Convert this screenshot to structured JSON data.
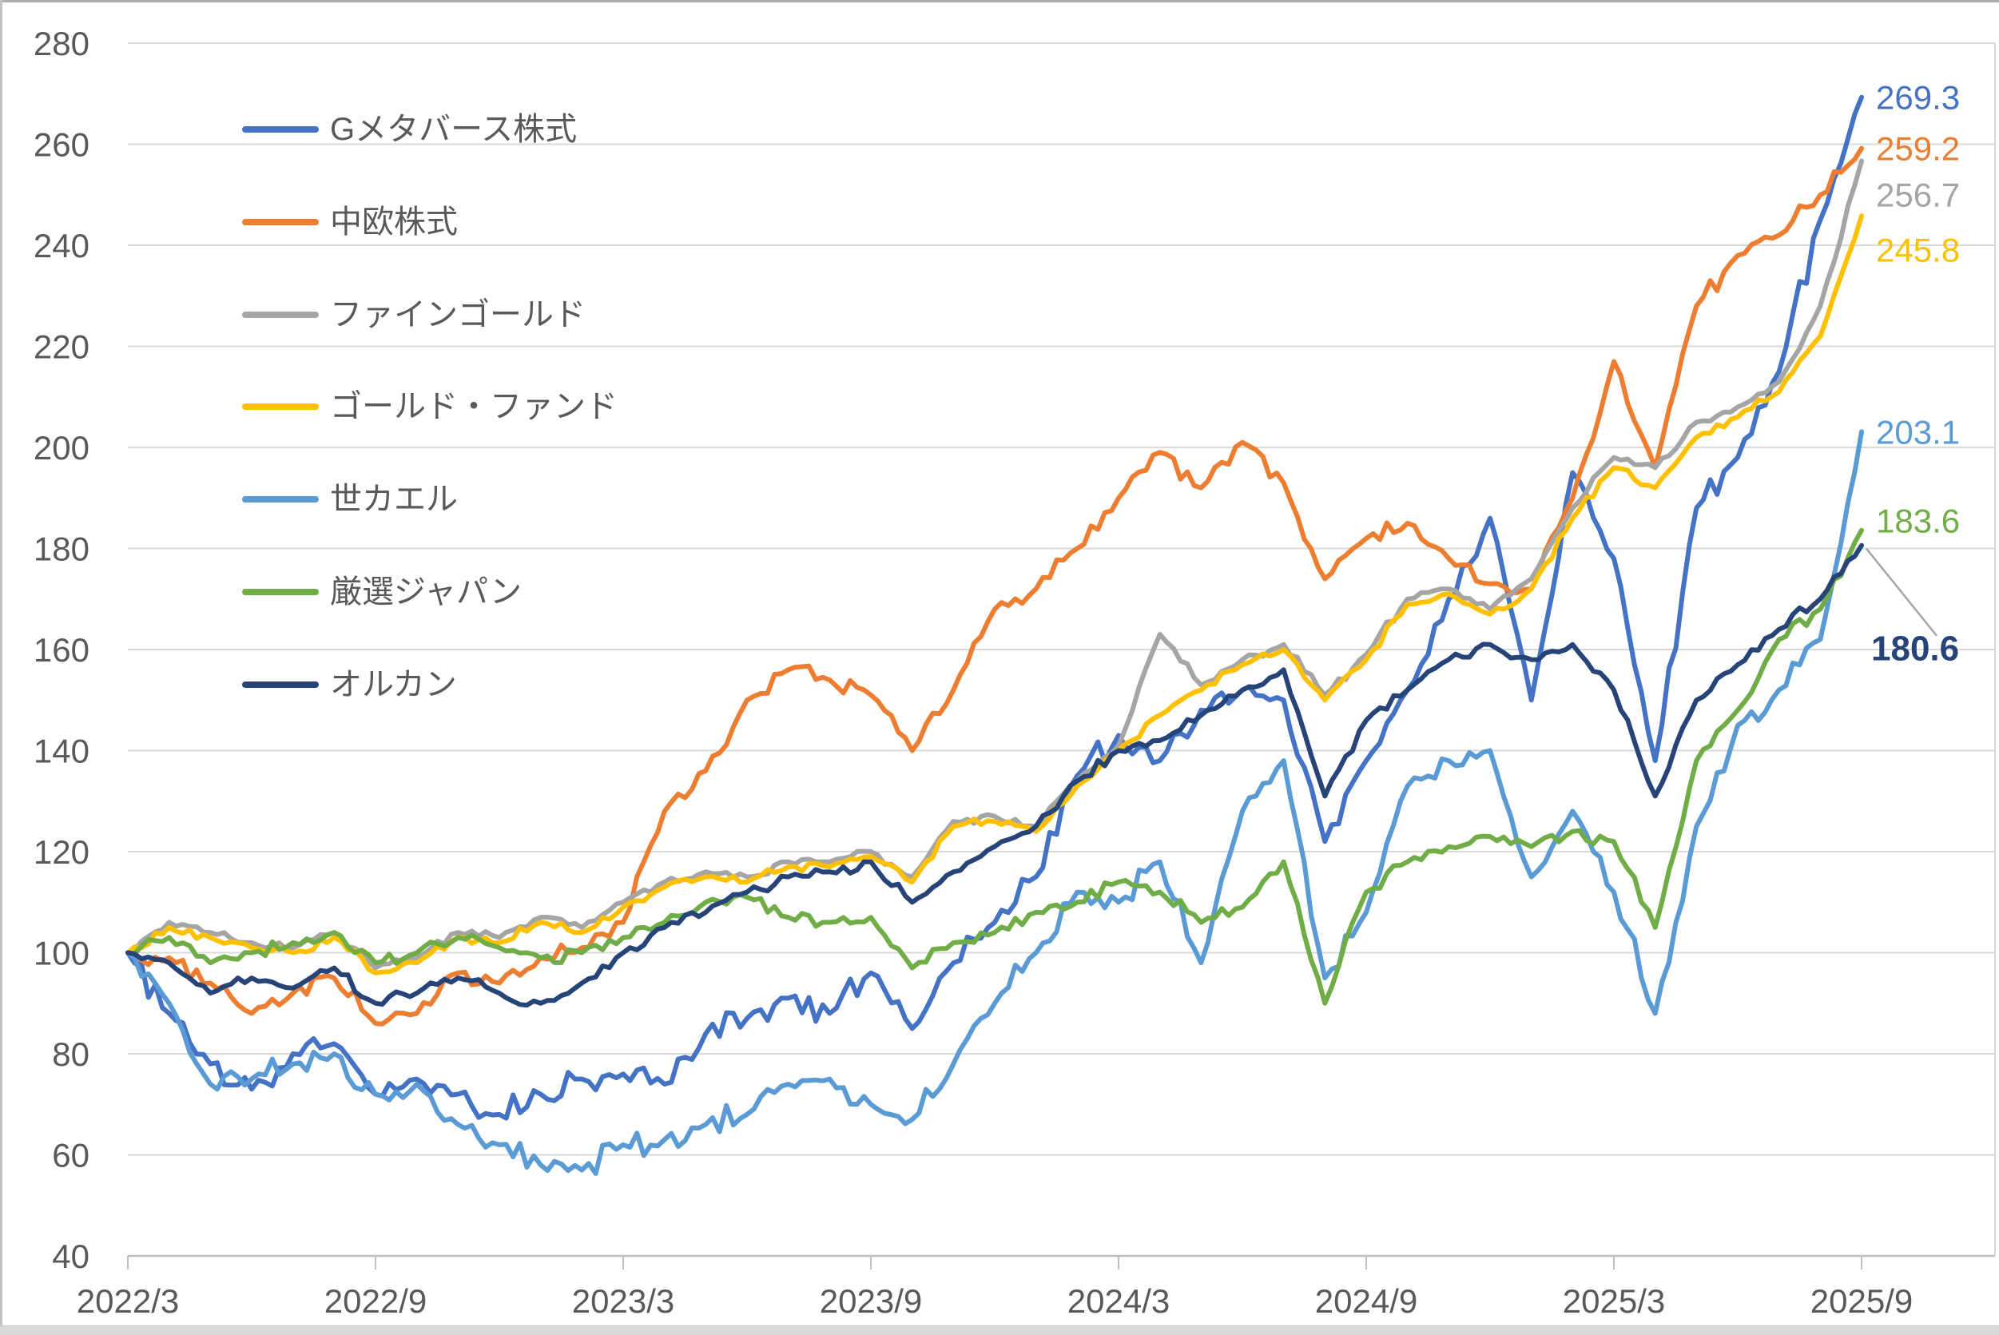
{
  "chart_data": {
    "type": "line",
    "title": "",
    "xlabel": "",
    "ylabel": "",
    "ylim": [
      40,
      280
    ],
    "y_tick_step": 20,
    "y_tick_labels": [
      "280",
      "260",
      "240",
      "220",
      "200",
      "180",
      "160",
      "140",
      "120",
      "100",
      "80",
      "60",
      "40"
    ],
    "x_tick_labels": [
      "2022/3",
      "2022/9",
      "2023/3",
      "2023/9",
      "2024/3",
      "2024/9",
      "2025/3",
      "2025/9"
    ],
    "x_tick_month_index": [
      0,
      6,
      12,
      18,
      24,
      30,
      36,
      42
    ],
    "x_months": [
      "2022/3",
      "2022/4",
      "2022/5",
      "2022/6",
      "2022/7",
      "2022/8",
      "2022/9",
      "2022/10",
      "2022/11",
      "2022/12",
      "2023/1",
      "2023/2",
      "2023/3",
      "2023/4",
      "2023/5",
      "2023/6",
      "2023/7",
      "2023/8",
      "2023/9",
      "2023/10",
      "2023/11",
      "2023/12",
      "2024/1",
      "2024/2",
      "2024/3",
      "2024/4",
      "2024/5",
      "2024/6",
      "2024/7",
      "2024/8",
      "2024/9",
      "2024/10",
      "2024/11",
      "2024/12",
      "2025/1",
      "2025/2",
      "2025/3",
      "2025/4",
      "2025/5",
      "2025/6",
      "2025/7",
      "2025/8",
      "2025/9"
    ],
    "grid": "horizontal",
    "grid_color": "#D9D9D9",
    "axis_color": "#BFBFBF",
    "tick_label_color": "#595959",
    "legend_position": "upper-left-inside",
    "baseline_value": 100,
    "series": [
      {
        "name": "Gメタバース株式",
        "color": "#4472C4",
        "end_label": "269.3",
        "volatility": 3.0,
        "values": [
          100,
          88,
          78,
          73,
          80,
          82,
          72,
          75,
          72,
          68,
          72,
          75,
          76,
          74,
          84,
          87,
          91,
          88,
          96,
          85,
          98,
          106,
          115,
          135,
          143,
          138,
          148,
          152,
          150,
          122,
          138,
          152,
          170,
          186,
          150,
          195,
          178,
          138,
          188,
          198,
          215,
          245,
          269.3
        ]
      },
      {
        "name": "中欧株式",
        "color": "#ED7D31",
        "end_label": "259.2",
        "volatility": 2.0,
        "values": [
          100,
          99,
          94,
          88,
          92,
          95,
          86,
          88,
          96,
          94,
          99,
          101,
          106,
          128,
          136,
          150,
          156,
          154,
          151,
          140,
          152,
          168,
          172,
          180,
          190,
          199,
          192,
          201,
          193,
          174,
          182,
          185,
          178,
          173,
          172,
          190,
          217,
          196,
          228,
          238,
          242,
          250,
          259.2
        ]
      },
      {
        "name": "ファインゴールド",
        "color": "#A5A5A5",
        "end_label": "256.7",
        "volatility": 1.0,
        "values": [
          100,
          106,
          104,
          102,
          101,
          104,
          97,
          99,
          104,
          103,
          107,
          105,
          110,
          114,
          116,
          115,
          118,
          118,
          120,
          115,
          126,
          127,
          125,
          134,
          141,
          163,
          153,
          158,
          161,
          151,
          159,
          170,
          172,
          168,
          174,
          188,
          198,
          196,
          205,
          208,
          213,
          228,
          256.7
        ]
      },
      {
        "name": "ゴールド・ファンド",
        "color": "#FFC000",
        "end_label": "245.8",
        "volatility": 1.0,
        "values": [
          100,
          105,
          103,
          101,
          100,
          103,
          96,
          98,
          103,
          102,
          106,
          104,
          109,
          113,
          115,
          114,
          117,
          117,
          119,
          114,
          125,
          126,
          124,
          133,
          140,
          147,
          152,
          157,
          160,
          150,
          158,
          169,
          171,
          167,
          172,
          186,
          196,
          192,
          202,
          206,
          211,
          222,
          245.8
        ]
      },
      {
        "name": "世カエル",
        "color": "#5B9BD5",
        "end_label": "203.1",
        "volatility": 2.8,
        "values": [
          100,
          90,
          74,
          75,
          78,
          80,
          72,
          74,
          66,
          62,
          58,
          57,
          62,
          63,
          66,
          68,
          74,
          75,
          70,
          67,
          78,
          90,
          100,
          112,
          110,
          118,
          98,
          128,
          138,
          95,
          108,
          133,
          138,
          140,
          115,
          128,
          112,
          88,
          125,
          145,
          152,
          162,
          203.1
        ]
      },
      {
        "name": "厳選ジャパン",
        "color": "#70AD47",
        "end_label": "183.6",
        "volatility": 1.5,
        "values": [
          100,
          103,
          98,
          100,
          102,
          104,
          98,
          100,
          103,
          101,
          99,
          100,
          103,
          106,
          110,
          111,
          107,
          106,
          107,
          97,
          102,
          104,
          108,
          110,
          114,
          112,
          106,
          109,
          118,
          90,
          112,
          118,
          121,
          123,
          121,
          124,
          122,
          105,
          138,
          148,
          162,
          168,
          183.6
        ]
      },
      {
        "name": "オルカン",
        "color": "#264478",
        "end_label": "180.6",
        "end_label_bold": true,
        "callout": true,
        "volatility": 1.3,
        "values": [
          100,
          98,
          92,
          95,
          93,
          97,
          90,
          92,
          95,
          92,
          90,
          94,
          100,
          105,
          108,
          112,
          115,
          116,
          118,
          110,
          116,
          121,
          125,
          134,
          140,
          142,
          147,
          152,
          156,
          131,
          146,
          152,
          158,
          161,
          158,
          161,
          152,
          131,
          150,
          157,
          164,
          170,
          180.6
        ]
      }
    ]
  }
}
